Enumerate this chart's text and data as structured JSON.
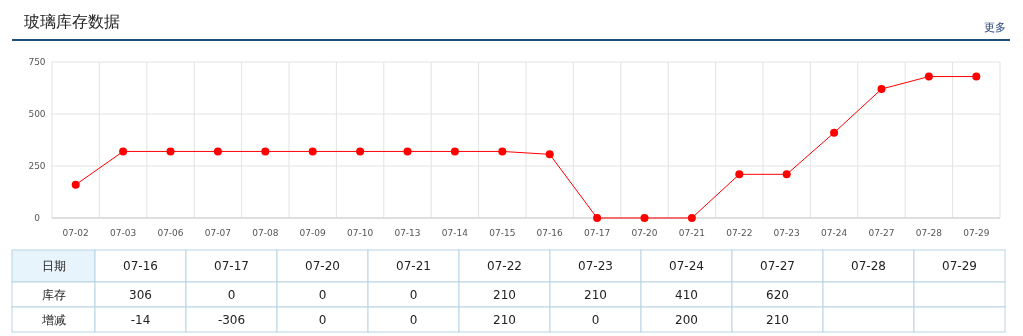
{
  "chart_data": {
    "type": "line",
    "title": "玻璃库存数据",
    "xlabel": "日期",
    "categories": [
      "07-02",
      "07-03",
      "07-06",
      "07-07",
      "07-08",
      "07-09",
      "07-10",
      "07-13",
      "07-14",
      "07-15",
      "07-16",
      "07-17",
      "07-20",
      "07-21",
      "07-22",
      "07-23",
      "07-24",
      "07-27",
      "07-28",
      "07-29"
    ],
    "series": [
      {
        "name": "库存",
        "color": "#ff0000",
        "values": [
          160,
          320,
          320,
          320,
          320,
          320,
          320,
          320,
          320,
          320,
          306,
          0,
          0,
          0,
          210,
          210,
          410,
          620,
          680,
          680
        ]
      }
    ],
    "ylim": [
      0,
      750
    ],
    "yticks": [
      0,
      250,
      500,
      750
    ],
    "grid": true,
    "marker": "circle",
    "legend": false,
    "annotations": [
      "更多",
      "增减",
      "306",
      "0",
      "0",
      "0",
      "210",
      "210",
      "410",
      "620",
      "-14",
      "-306",
      "0",
      "0",
      "210",
      "0",
      "200",
      "210"
    ]
  }
}
